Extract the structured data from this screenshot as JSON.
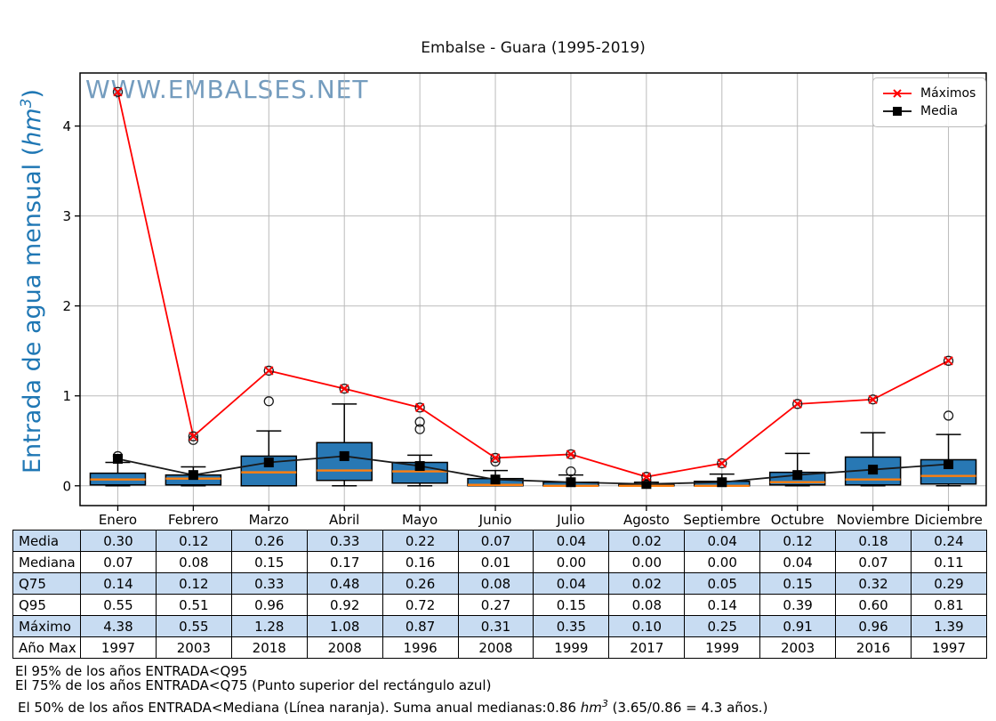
{
  "title": "Embalse - Guara (1995-2019)",
  "watermark": "WWW.EMBALSES.NET",
  "y_axis": {
    "label_prefix": "Entrada de agua mensual (",
    "label_unit": "hm",
    "label_sup": "3",
    "label_suffix": ")"
  },
  "legend": {
    "items": [
      {
        "label": "Máximos",
        "marker": "red-x-line"
      },
      {
        "label": "Media",
        "marker": "black-square-line"
      }
    ]
  },
  "chart_data": {
    "type": "box",
    "title": "Embalse - Guara (1995-2019)",
    "ylabel": "Entrada de agua mensual (hm3)",
    "categories": [
      "Enero",
      "Febrero",
      "Marzo",
      "Abril",
      "Mayo",
      "Junio",
      "Julio",
      "Agosto",
      "Septiembre",
      "Octubre",
      "Noviembre",
      "Diciembre"
    ],
    "yticks": [
      0,
      1,
      2,
      3,
      4
    ],
    "ylim": [
      -0.22,
      4.59
    ],
    "grid": true,
    "legend_position": "upper right",
    "series": [
      {
        "name": "Máximos",
        "type": "line",
        "marker": "x-circle",
        "values": [
          4.38,
          0.55,
          1.28,
          1.08,
          0.87,
          0.31,
          0.35,
          0.1,
          0.25,
          0.91,
          0.96,
          1.39
        ]
      },
      {
        "name": "Media",
        "type": "line",
        "marker": "square",
        "values": [
          0.3,
          0.12,
          0.26,
          0.33,
          0.22,
          0.07,
          0.04,
          0.02,
          0.04,
          0.12,
          0.18,
          0.24
        ]
      }
    ],
    "boxes": {
      "q25": [
        0.01,
        0.01,
        0.0,
        0.06,
        0.03,
        0.0,
        0.0,
        0.0,
        0.0,
        0.01,
        0.01,
        0.02
      ],
      "median": [
        0.07,
        0.08,
        0.15,
        0.17,
        0.16,
        0.01,
        0.0,
        0.0,
        0.0,
        0.04,
        0.07,
        0.11
      ],
      "q75": [
        0.14,
        0.12,
        0.33,
        0.48,
        0.26,
        0.08,
        0.04,
        0.02,
        0.05,
        0.15,
        0.32,
        0.29
      ],
      "q95": [
        0.55,
        0.51,
        0.96,
        0.92,
        0.72,
        0.27,
        0.15,
        0.08,
        0.14,
        0.39,
        0.6,
        0.81
      ],
      "whisker_hi": [
        0.26,
        0.21,
        0.61,
        0.91,
        0.34,
        0.17,
        0.12,
        0.04,
        0.13,
        0.36,
        0.59,
        0.57
      ],
      "whisker_lo": [
        0.0,
        0.0,
        0.0,
        0.0,
        0.0,
        0.0,
        0.0,
        0.0,
        0.0,
        0.0,
        0.0,
        0.0
      ],
      "outliers": [
        [
          0.33
        ],
        [
          0.51
        ],
        [
          0.94
        ],
        [],
        [
          0.71,
          0.63
        ],
        [
          0.27
        ],
        [
          0.16
        ],
        [],
        [],
        [],
        [],
        [
          0.78
        ]
      ]
    }
  },
  "table": {
    "rows": [
      {
        "label": "Media",
        "shaded": true,
        "values": [
          "0.30",
          "0.12",
          "0.26",
          "0.33",
          "0.22",
          "0.07",
          "0.04",
          "0.02",
          "0.04",
          "0.12",
          "0.18",
          "0.24"
        ]
      },
      {
        "label": "Mediana",
        "shaded": false,
        "values": [
          "0.07",
          "0.08",
          "0.15",
          "0.17",
          "0.16",
          "0.01",
          "0.00",
          "0.00",
          "0.00",
          "0.04",
          "0.07",
          "0.11"
        ]
      },
      {
        "label": "Q75",
        "shaded": true,
        "values": [
          "0.14",
          "0.12",
          "0.33",
          "0.48",
          "0.26",
          "0.08",
          "0.04",
          "0.02",
          "0.05",
          "0.15",
          "0.32",
          "0.29"
        ]
      },
      {
        "label": "Q95",
        "shaded": false,
        "values": [
          "0.55",
          "0.51",
          "0.96",
          "0.92",
          "0.72",
          "0.27",
          "0.15",
          "0.08",
          "0.14",
          "0.39",
          "0.60",
          "0.81"
        ]
      },
      {
        "label": "Máximo",
        "shaded": true,
        "values": [
          "4.38",
          "0.55",
          "1.28",
          "1.08",
          "0.87",
          "0.31",
          "0.35",
          "0.10",
          "0.25",
          "0.91",
          "0.96",
          "1.39"
        ]
      },
      {
        "label": "Año Max",
        "shaded": false,
        "values": [
          "1997",
          "2003",
          "2018",
          "2008",
          "1996",
          "2008",
          "1999",
          "2017",
          "1999",
          "2003",
          "2016",
          "1997"
        ]
      }
    ]
  },
  "footer": {
    "line1": "El 95% de los años ENTRADA<Q95",
    "line2": "El 75% de los años ENTRADA<Q75 (Punto superior del rectángulo azul)",
    "line3_pre": "El 50% de los años ENTRADA<Mediana (Línea naranja). Suma anual medianas:0.86 ",
    "line3_unit": "hm",
    "line3_sup": "3",
    "line3_post": " (3.65/0.86 = 4.3 años.)"
  },
  "colors": {
    "box_fill": "#2878b4",
    "median_line": "#ff7f0e",
    "max_line": "#ff0000",
    "mean_line": "#1a1a1a",
    "grid": "#bbbbbb",
    "table_shade": "#c8dcf2",
    "watermark_blue": "#74a3c7",
    "ylabel_blue": "#1f77b4"
  }
}
